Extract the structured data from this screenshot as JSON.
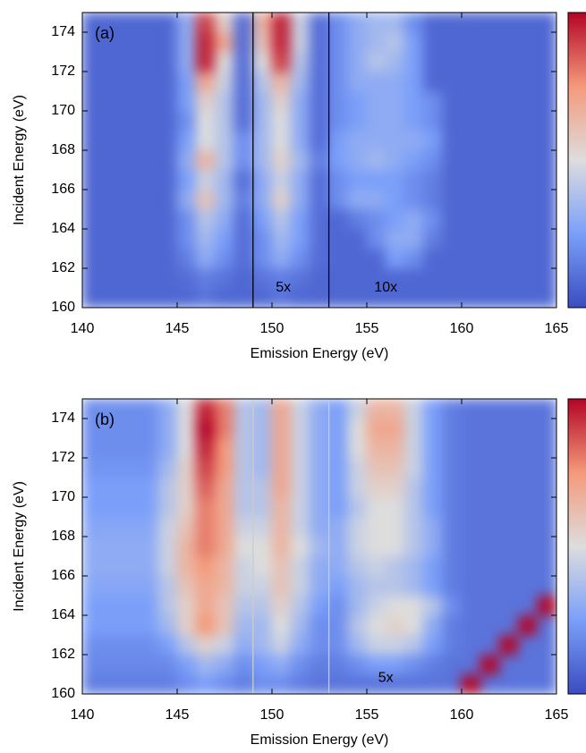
{
  "chart_data": [
    {
      "type": "heatmap",
      "title": "(a)",
      "xlabel": "Emission Energy (eV)",
      "ylabel": "Incident Energy (eV)",
      "xlim": [
        140,
        165
      ],
      "ylim": [
        160,
        175
      ],
      "xticks": [
        140,
        145,
        150,
        155,
        160,
        165
      ],
      "yticks": [
        160,
        162,
        164,
        166,
        168,
        170,
        172,
        174
      ],
      "zlim": [
        0,
        1
      ],
      "colormap": "coolwarm",
      "vlines": [
        149,
        153
      ],
      "vline_color": "#000000",
      "annotations": [
        {
          "text": "5x",
          "x": 150.6,
          "y": 161
        },
        {
          "text": "10x",
          "x": 156,
          "y": 161
        }
      ],
      "x": [
        140.5,
        141.5,
        142.5,
        143.5,
        144.5,
        145.5,
        146.5,
        147.5,
        148.5,
        149.5,
        150.5,
        151.5,
        152.5,
        153.5,
        154.5,
        155.5,
        156.5,
        157.5,
        158.5,
        159.5,
        160.5,
        161.5,
        162.5,
        163.5,
        164.5
      ],
      "y": [
        160.5,
        161.5,
        162.5,
        163.5,
        164.5,
        165.5,
        166.5,
        167.5,
        168.5,
        169.5,
        170.5,
        171.5,
        172.5,
        173.5,
        174.5
      ],
      "z": [
        [
          0.08,
          0.08,
          0.08,
          0.08,
          0.08,
          0.08,
          0.12,
          0.08,
          0.08,
          0.08,
          0.12,
          0.08,
          0.08,
          0.08,
          0.08,
          0.08,
          0.08,
          0.08,
          0.08,
          0.08,
          0.08,
          0.08,
          0.08,
          0.08,
          0.08
        ],
        [
          0.08,
          0.08,
          0.08,
          0.08,
          0.08,
          0.1,
          0.15,
          0.12,
          0.08,
          0.12,
          0.15,
          0.12,
          0.08,
          0.08,
          0.08,
          0.08,
          0.08,
          0.08,
          0.08,
          0.08,
          0.08,
          0.08,
          0.08,
          0.08,
          0.08
        ],
        [
          0.08,
          0.08,
          0.08,
          0.08,
          0.08,
          0.15,
          0.3,
          0.2,
          0.1,
          0.2,
          0.3,
          0.2,
          0.1,
          0.08,
          0.08,
          0.08,
          0.25,
          0.2,
          0.08,
          0.08,
          0.08,
          0.08,
          0.08,
          0.08,
          0.08
        ],
        [
          0.08,
          0.08,
          0.08,
          0.08,
          0.08,
          0.2,
          0.35,
          0.25,
          0.1,
          0.2,
          0.35,
          0.25,
          0.1,
          0.08,
          0.08,
          0.2,
          0.3,
          0.3,
          0.15,
          0.08,
          0.08,
          0.08,
          0.08,
          0.08,
          0.08
        ],
        [
          0.08,
          0.08,
          0.08,
          0.08,
          0.08,
          0.2,
          0.4,
          0.3,
          0.1,
          0.25,
          0.4,
          0.25,
          0.1,
          0.08,
          0.15,
          0.2,
          0.25,
          0.3,
          0.2,
          0.08,
          0.08,
          0.08,
          0.08,
          0.08,
          0.08
        ],
        [
          0.08,
          0.08,
          0.08,
          0.08,
          0.08,
          0.3,
          0.6,
          0.35,
          0.15,
          0.3,
          0.55,
          0.3,
          0.1,
          0.2,
          0.3,
          0.3,
          0.25,
          0.2,
          0.15,
          0.08,
          0.08,
          0.08,
          0.08,
          0.08,
          0.08
        ],
        [
          0.08,
          0.08,
          0.08,
          0.08,
          0.08,
          0.25,
          0.45,
          0.35,
          0.1,
          0.3,
          0.45,
          0.3,
          0.1,
          0.2,
          0.25,
          0.25,
          0.25,
          0.2,
          0.15,
          0.08,
          0.08,
          0.08,
          0.08,
          0.08,
          0.08
        ],
        [
          0.08,
          0.08,
          0.08,
          0.08,
          0.08,
          0.3,
          0.65,
          0.4,
          0.2,
          0.35,
          0.55,
          0.35,
          0.15,
          0.25,
          0.3,
          0.35,
          0.3,
          0.25,
          0.2,
          0.08,
          0.08,
          0.08,
          0.08,
          0.08,
          0.08
        ],
        [
          0.08,
          0.08,
          0.08,
          0.08,
          0.08,
          0.25,
          0.5,
          0.4,
          0.2,
          0.35,
          0.5,
          0.3,
          0.1,
          0.25,
          0.3,
          0.3,
          0.3,
          0.3,
          0.25,
          0.08,
          0.08,
          0.08,
          0.08,
          0.08,
          0.08
        ],
        [
          0.08,
          0.08,
          0.08,
          0.08,
          0.08,
          0.2,
          0.5,
          0.4,
          0.1,
          0.35,
          0.5,
          0.3,
          0.1,
          0.2,
          0.25,
          0.3,
          0.3,
          0.25,
          0.2,
          0.08,
          0.08,
          0.08,
          0.08,
          0.08,
          0.08
        ],
        [
          0.08,
          0.08,
          0.08,
          0.08,
          0.08,
          0.25,
          0.55,
          0.4,
          0.1,
          0.35,
          0.55,
          0.3,
          0.1,
          0.2,
          0.25,
          0.3,
          0.3,
          0.25,
          0.2,
          0.08,
          0.08,
          0.08,
          0.08,
          0.08,
          0.08
        ],
        [
          0.08,
          0.08,
          0.08,
          0.08,
          0.08,
          0.25,
          0.7,
          0.45,
          0.1,
          0.4,
          0.65,
          0.35,
          0.1,
          0.2,
          0.3,
          0.3,
          0.3,
          0.25,
          0.08,
          0.08,
          0.08,
          0.08,
          0.08,
          0.08,
          0.08
        ],
        [
          0.08,
          0.08,
          0.08,
          0.08,
          0.08,
          0.3,
          0.95,
          0.5,
          0.1,
          0.5,
          0.9,
          0.4,
          0.1,
          0.2,
          0.3,
          0.4,
          0.35,
          0.25,
          0.08,
          0.08,
          0.08,
          0.08,
          0.08,
          0.08,
          0.08
        ],
        [
          0.08,
          0.08,
          0.08,
          0.08,
          0.08,
          0.3,
          0.95,
          0.7,
          0.1,
          0.6,
          0.95,
          0.45,
          0.1,
          0.2,
          0.3,
          0.35,
          0.4,
          0.25,
          0.08,
          0.08,
          0.08,
          0.08,
          0.08,
          0.08,
          0.08
        ],
        [
          0.08,
          0.08,
          0.08,
          0.08,
          0.08,
          0.3,
          0.9,
          0.55,
          0.1,
          0.65,
          0.95,
          0.45,
          0.1,
          0.2,
          0.3,
          0.35,
          0.35,
          0.2,
          0.08,
          0.08,
          0.08,
          0.08,
          0.08,
          0.08,
          0.08
        ]
      ]
    },
    {
      "type": "heatmap",
      "title": "(b)",
      "xlabel": "Emission Energy (eV)",
      "ylabel": "Incident Energy (eV)",
      "xlim": [
        140,
        165
      ],
      "ylim": [
        160,
        175
      ],
      "xticks": [
        140,
        145,
        150,
        155,
        160,
        165
      ],
      "yticks": [
        160,
        162,
        164,
        166,
        168,
        170,
        172,
        174
      ],
      "zlim": [
        0,
        1
      ],
      "colormap": "coolwarm",
      "vlines": [
        149,
        153
      ],
      "vline_color": "#cccccc",
      "annotations": [
        {
          "text": "5x",
          "x": 156,
          "y": 160.8
        }
      ],
      "x": [
        140.5,
        141.5,
        142.5,
        143.5,
        144.5,
        145.5,
        146.5,
        147.5,
        148.5,
        149.5,
        150.5,
        151.5,
        152.5,
        153.5,
        154.5,
        155.5,
        156.5,
        157.5,
        158.5,
        159.5,
        160.5,
        161.5,
        162.5,
        163.5,
        164.5
      ],
      "y": [
        160.5,
        161.5,
        162.5,
        163.5,
        164.5,
        165.5,
        166.5,
        167.5,
        168.5,
        169.5,
        170.5,
        171.5,
        172.5,
        173.5,
        174.5
      ],
      "z": [
        [
          0.15,
          0.15,
          0.15,
          0.15,
          0.15,
          0.2,
          0.25,
          0.2,
          0.15,
          0.2,
          0.2,
          0.15,
          0.12,
          0.12,
          0.12,
          0.12,
          0.12,
          0.12,
          0.12,
          0.12,
          1.0,
          0.12,
          0.12,
          0.12,
          0.12
        ],
        [
          0.18,
          0.18,
          0.18,
          0.18,
          0.18,
          0.25,
          0.35,
          0.3,
          0.2,
          0.25,
          0.3,
          0.2,
          0.15,
          0.15,
          0.2,
          0.25,
          0.25,
          0.2,
          0.15,
          0.12,
          0.12,
          1.0,
          0.12,
          0.12,
          0.12
        ],
        [
          0.2,
          0.2,
          0.2,
          0.2,
          0.25,
          0.4,
          0.55,
          0.45,
          0.3,
          0.35,
          0.45,
          0.3,
          0.2,
          0.2,
          0.35,
          0.45,
          0.45,
          0.4,
          0.25,
          0.15,
          0.12,
          0.12,
          1.0,
          0.12,
          0.12
        ],
        [
          0.25,
          0.25,
          0.25,
          0.25,
          0.35,
          0.55,
          0.75,
          0.6,
          0.35,
          0.35,
          0.5,
          0.35,
          0.2,
          0.2,
          0.4,
          0.5,
          0.55,
          0.5,
          0.3,
          0.15,
          0.12,
          0.12,
          0.12,
          1.0,
          0.12
        ],
        [
          0.25,
          0.25,
          0.25,
          0.25,
          0.4,
          0.55,
          0.7,
          0.6,
          0.4,
          0.4,
          0.55,
          0.4,
          0.25,
          0.2,
          0.35,
          0.45,
          0.5,
          0.5,
          0.4,
          0.2,
          0.12,
          0.12,
          0.12,
          0.12,
          1.0
        ],
        [
          0.28,
          0.28,
          0.28,
          0.28,
          0.4,
          0.6,
          0.7,
          0.65,
          0.45,
          0.45,
          0.6,
          0.45,
          0.3,
          0.25,
          0.35,
          0.4,
          0.4,
          0.35,
          0.25,
          0.15,
          0.12,
          0.12,
          0.12,
          0.12,
          0.12
        ],
        [
          0.3,
          0.3,
          0.3,
          0.3,
          0.45,
          0.65,
          0.75,
          0.65,
          0.45,
          0.5,
          0.6,
          0.45,
          0.3,
          0.3,
          0.4,
          0.45,
          0.4,
          0.35,
          0.25,
          0.15,
          0.12,
          0.12,
          0.12,
          0.12,
          0.12
        ],
        [
          0.3,
          0.3,
          0.3,
          0.3,
          0.45,
          0.65,
          0.8,
          0.7,
          0.5,
          0.5,
          0.65,
          0.5,
          0.35,
          0.3,
          0.45,
          0.5,
          0.5,
          0.4,
          0.3,
          0.15,
          0.12,
          0.12,
          0.12,
          0.12,
          0.12
        ],
        [
          0.28,
          0.28,
          0.28,
          0.28,
          0.45,
          0.6,
          0.8,
          0.7,
          0.45,
          0.45,
          0.65,
          0.45,
          0.3,
          0.3,
          0.45,
          0.5,
          0.5,
          0.4,
          0.3,
          0.15,
          0.12,
          0.12,
          0.12,
          0.12,
          0.12
        ],
        [
          0.25,
          0.25,
          0.25,
          0.25,
          0.4,
          0.55,
          0.8,
          0.7,
          0.4,
          0.4,
          0.65,
          0.45,
          0.3,
          0.25,
          0.4,
          0.5,
          0.5,
          0.4,
          0.25,
          0.15,
          0.12,
          0.12,
          0.12,
          0.12,
          0.12
        ],
        [
          0.25,
          0.25,
          0.25,
          0.25,
          0.4,
          0.55,
          0.85,
          0.7,
          0.4,
          0.4,
          0.7,
          0.45,
          0.3,
          0.25,
          0.45,
          0.55,
          0.55,
          0.4,
          0.25,
          0.15,
          0.12,
          0.12,
          0.12,
          0.12,
          0.12
        ],
        [
          0.22,
          0.22,
          0.22,
          0.22,
          0.35,
          0.55,
          0.9,
          0.75,
          0.4,
          0.35,
          0.7,
          0.45,
          0.3,
          0.25,
          0.45,
          0.6,
          0.6,
          0.45,
          0.25,
          0.15,
          0.12,
          0.12,
          0.12,
          0.12,
          0.12
        ],
        [
          0.2,
          0.2,
          0.2,
          0.2,
          0.3,
          0.5,
          0.95,
          0.75,
          0.4,
          0.35,
          0.7,
          0.45,
          0.3,
          0.25,
          0.5,
          0.65,
          0.65,
          0.45,
          0.25,
          0.15,
          0.12,
          0.12,
          0.12,
          0.12,
          0.12
        ],
        [
          0.2,
          0.2,
          0.2,
          0.2,
          0.3,
          0.5,
          1.0,
          0.8,
          0.4,
          0.35,
          0.7,
          0.45,
          0.3,
          0.25,
          0.5,
          0.7,
          0.7,
          0.45,
          0.25,
          0.15,
          0.12,
          0.12,
          0.12,
          0.12,
          0.12
        ],
        [
          0.2,
          0.2,
          0.2,
          0.2,
          0.3,
          0.5,
          0.95,
          0.8,
          0.4,
          0.35,
          0.7,
          0.45,
          0.3,
          0.25,
          0.45,
          0.65,
          0.65,
          0.45,
          0.25,
          0.15,
          0.12,
          0.12,
          0.12,
          0.12,
          0.12
        ]
      ]
    }
  ]
}
